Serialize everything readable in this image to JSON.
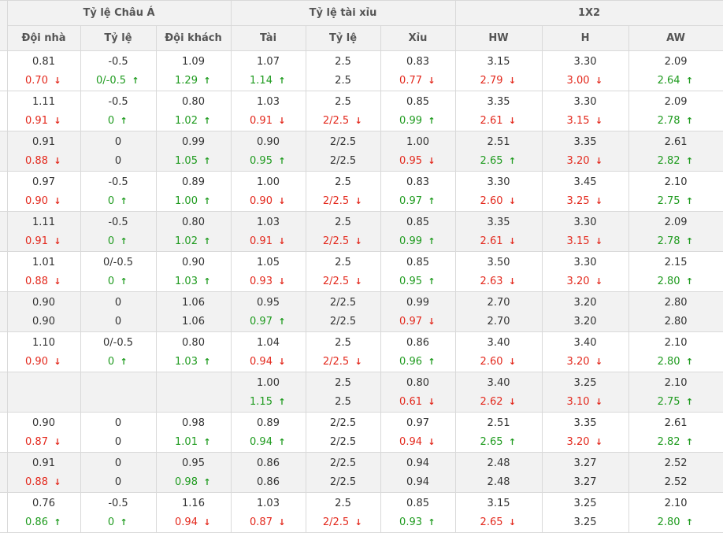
{
  "colors": {
    "down": "#e3281c",
    "up": "#1f9b1f",
    "header_bg": "#f2f2f2",
    "alt_row_bg": "#f2f2f2"
  },
  "header": {
    "groups": [
      "Tỷ lệ Châu Á",
      "Tỷ lệ tài xỉu",
      "1X2"
    ],
    "columns": [
      "Đội nhà",
      "Tỷ lệ",
      "Đội khách",
      "Tài",
      "Tỷ lệ",
      "Xỉu",
      "HW",
      "H",
      "AW"
    ]
  },
  "rows": [
    {
      "alt": false,
      "cells": [
        {
          "top": "0.81",
          "bottom": "0.70",
          "trend": "down"
        },
        {
          "top": "-0.5",
          "bottom": "0/-0.5",
          "trend": "up"
        },
        {
          "top": "1.09",
          "bottom": "1.29",
          "trend": "up"
        },
        {
          "top": "1.07",
          "bottom": "1.14",
          "trend": "up"
        },
        {
          "top": "2.5",
          "bottom": "2.5",
          "trend": ""
        },
        {
          "top": "0.83",
          "bottom": "0.77",
          "trend": "down"
        },
        {
          "top": "3.15",
          "bottom": "2.79",
          "trend": "down"
        },
        {
          "top": "3.30",
          "bottom": "3.00",
          "trend": "down"
        },
        {
          "top": "2.09",
          "bottom": "2.64",
          "trend": "up"
        }
      ]
    },
    {
      "alt": false,
      "cells": [
        {
          "top": "1.11",
          "bottom": "0.91",
          "trend": "down"
        },
        {
          "top": "-0.5",
          "bottom": "0",
          "trend": "up"
        },
        {
          "top": "0.80",
          "bottom": "1.02",
          "trend": "up"
        },
        {
          "top": "1.03",
          "bottom": "0.91",
          "trend": "down"
        },
        {
          "top": "2.5",
          "bottom": "2/2.5",
          "trend": "down"
        },
        {
          "top": "0.85",
          "bottom": "0.99",
          "trend": "up"
        },
        {
          "top": "3.35",
          "bottom": "2.61",
          "trend": "down"
        },
        {
          "top": "3.30",
          "bottom": "3.15",
          "trend": "down"
        },
        {
          "top": "2.09",
          "bottom": "2.78",
          "trend": "up"
        }
      ]
    },
    {
      "alt": true,
      "cells": [
        {
          "top": "0.91",
          "bottom": "0.88",
          "trend": "down"
        },
        {
          "top": "0",
          "bottom": "0",
          "trend": ""
        },
        {
          "top": "0.99",
          "bottom": "1.05",
          "trend": "up"
        },
        {
          "top": "0.90",
          "bottom": "0.95",
          "trend": "up"
        },
        {
          "top": "2/2.5",
          "bottom": "2/2.5",
          "trend": ""
        },
        {
          "top": "1.00",
          "bottom": "0.95",
          "trend": "down"
        },
        {
          "top": "2.51",
          "bottom": "2.65",
          "trend": "up"
        },
        {
          "top": "3.35",
          "bottom": "3.20",
          "trend": "down"
        },
        {
          "top": "2.61",
          "bottom": "2.82",
          "trend": "up"
        }
      ]
    },
    {
      "alt": false,
      "cells": [
        {
          "top": "0.97",
          "bottom": "0.90",
          "trend": "down"
        },
        {
          "top": "-0.5",
          "bottom": "0",
          "trend": "up"
        },
        {
          "top": "0.89",
          "bottom": "1.00",
          "trend": "up"
        },
        {
          "top": "1.00",
          "bottom": "0.90",
          "trend": "down"
        },
        {
          "top": "2.5",
          "bottom": "2/2.5",
          "trend": "down"
        },
        {
          "top": "0.83",
          "bottom": "0.97",
          "trend": "up"
        },
        {
          "top": "3.30",
          "bottom": "2.60",
          "trend": "down"
        },
        {
          "top": "3.45",
          "bottom": "3.25",
          "trend": "down"
        },
        {
          "top": "2.10",
          "bottom": "2.75",
          "trend": "up"
        }
      ]
    },
    {
      "alt": true,
      "cells": [
        {
          "top": "1.11",
          "bottom": "0.91",
          "trend": "down"
        },
        {
          "top": "-0.5",
          "bottom": "0",
          "trend": "up"
        },
        {
          "top": "0.80",
          "bottom": "1.02",
          "trend": "up"
        },
        {
          "top": "1.03",
          "bottom": "0.91",
          "trend": "down"
        },
        {
          "top": "2.5",
          "bottom": "2/2.5",
          "trend": "down"
        },
        {
          "top": "0.85",
          "bottom": "0.99",
          "trend": "up"
        },
        {
          "top": "3.35",
          "bottom": "2.61",
          "trend": "down"
        },
        {
          "top": "3.30",
          "bottom": "3.15",
          "trend": "down"
        },
        {
          "top": "2.09",
          "bottom": "2.78",
          "trend": "up"
        }
      ]
    },
    {
      "alt": false,
      "cells": [
        {
          "top": "1.01",
          "bottom": "0.88",
          "trend": "down"
        },
        {
          "top": "0/-0.5",
          "bottom": "0",
          "trend": "up"
        },
        {
          "top": "0.90",
          "bottom": "1.03",
          "trend": "up"
        },
        {
          "top": "1.05",
          "bottom": "0.93",
          "trend": "down"
        },
        {
          "top": "2.5",
          "bottom": "2/2.5",
          "trend": "down"
        },
        {
          "top": "0.85",
          "bottom": "0.95",
          "trend": "up"
        },
        {
          "top": "3.50",
          "bottom": "2.63",
          "trend": "down"
        },
        {
          "top": "3.30",
          "bottom": "3.20",
          "trend": "down"
        },
        {
          "top": "2.15",
          "bottom": "2.80",
          "trend": "up"
        }
      ]
    },
    {
      "alt": true,
      "cells": [
        {
          "top": "0.90",
          "bottom": "0.90",
          "trend": ""
        },
        {
          "top": "0",
          "bottom": "0",
          "trend": ""
        },
        {
          "top": "1.06",
          "bottom": "1.06",
          "trend": ""
        },
        {
          "top": "0.95",
          "bottom": "0.97",
          "trend": "up"
        },
        {
          "top": "2/2.5",
          "bottom": "2/2.5",
          "trend": ""
        },
        {
          "top": "0.99",
          "bottom": "0.97",
          "trend": "down"
        },
        {
          "top": "2.70",
          "bottom": "2.70",
          "trend": ""
        },
        {
          "top": "3.20",
          "bottom": "3.20",
          "trend": ""
        },
        {
          "top": "2.80",
          "bottom": "2.80",
          "trend": ""
        }
      ]
    },
    {
      "alt": false,
      "cells": [
        {
          "top": "1.10",
          "bottom": "0.90",
          "trend": "down"
        },
        {
          "top": "0/-0.5",
          "bottom": "0",
          "trend": "up"
        },
        {
          "top": "0.80",
          "bottom": "1.03",
          "trend": "up"
        },
        {
          "top": "1.04",
          "bottom": "0.94",
          "trend": "down"
        },
        {
          "top": "2.5",
          "bottom": "2/2.5",
          "trend": "down"
        },
        {
          "top": "0.86",
          "bottom": "0.96",
          "trend": "up"
        },
        {
          "top": "3.40",
          "bottom": "2.60",
          "trend": "down"
        },
        {
          "top": "3.40",
          "bottom": "3.20",
          "trend": "down"
        },
        {
          "top": "2.10",
          "bottom": "2.80",
          "trend": "up"
        }
      ]
    },
    {
      "alt": true,
      "cells": [
        {
          "top": "",
          "bottom": "",
          "trend": ""
        },
        {
          "top": "",
          "bottom": "",
          "trend": ""
        },
        {
          "top": "",
          "bottom": "",
          "trend": ""
        },
        {
          "top": "1.00",
          "bottom": "1.15",
          "trend": "up"
        },
        {
          "top": "2.5",
          "bottom": "2.5",
          "trend": ""
        },
        {
          "top": "0.80",
          "bottom": "0.61",
          "trend": "down"
        },
        {
          "top": "3.40",
          "bottom": "2.62",
          "trend": "down"
        },
        {
          "top": "3.25",
          "bottom": "3.10",
          "trend": "down"
        },
        {
          "top": "2.10",
          "bottom": "2.75",
          "trend": "up"
        }
      ]
    },
    {
      "alt": false,
      "cells": [
        {
          "top": "0.90",
          "bottom": "0.87",
          "trend": "down"
        },
        {
          "top": "0",
          "bottom": "0",
          "trend": ""
        },
        {
          "top": "0.98",
          "bottom": "1.01",
          "trend": "up"
        },
        {
          "top": "0.89",
          "bottom": "0.94",
          "trend": "up"
        },
        {
          "top": "2/2.5",
          "bottom": "2/2.5",
          "trend": ""
        },
        {
          "top": "0.97",
          "bottom": "0.94",
          "trend": "down"
        },
        {
          "top": "2.51",
          "bottom": "2.65",
          "trend": "up"
        },
        {
          "top": "3.35",
          "bottom": "3.20",
          "trend": "down"
        },
        {
          "top": "2.61",
          "bottom": "2.82",
          "trend": "up"
        }
      ]
    },
    {
      "alt": true,
      "cells": [
        {
          "top": "0.91",
          "bottom": "0.88",
          "trend": "down"
        },
        {
          "top": "0",
          "bottom": "0",
          "trend": ""
        },
        {
          "top": "0.95",
          "bottom": "0.98",
          "trend": "up"
        },
        {
          "top": "0.86",
          "bottom": "0.86",
          "trend": ""
        },
        {
          "top": "2/2.5",
          "bottom": "2/2.5",
          "trend": ""
        },
        {
          "top": "0.94",
          "bottom": "0.94",
          "trend": ""
        },
        {
          "top": "2.48",
          "bottom": "2.48",
          "trend": ""
        },
        {
          "top": "3.27",
          "bottom": "3.27",
          "trend": ""
        },
        {
          "top": "2.52",
          "bottom": "2.52",
          "trend": ""
        }
      ]
    },
    {
      "alt": false,
      "cells": [
        {
          "top": "0.76",
          "bottom": "0.86",
          "trend": "up"
        },
        {
          "top": "-0.5",
          "bottom": "0",
          "trend": "up"
        },
        {
          "top": "1.16",
          "bottom": "0.94",
          "trend": "down"
        },
        {
          "top": "1.03",
          "bottom": "0.87",
          "trend": "down"
        },
        {
          "top": "2.5",
          "bottom": "2/2.5",
          "trend": "down"
        },
        {
          "top": "0.85",
          "bottom": "0.93",
          "trend": "up"
        },
        {
          "top": "3.15",
          "bottom": "2.65",
          "trend": "down"
        },
        {
          "top": "3.25",
          "bottom": "3.25",
          "trend": ""
        },
        {
          "top": "2.10",
          "bottom": "2.80",
          "trend": "up"
        }
      ]
    }
  ]
}
